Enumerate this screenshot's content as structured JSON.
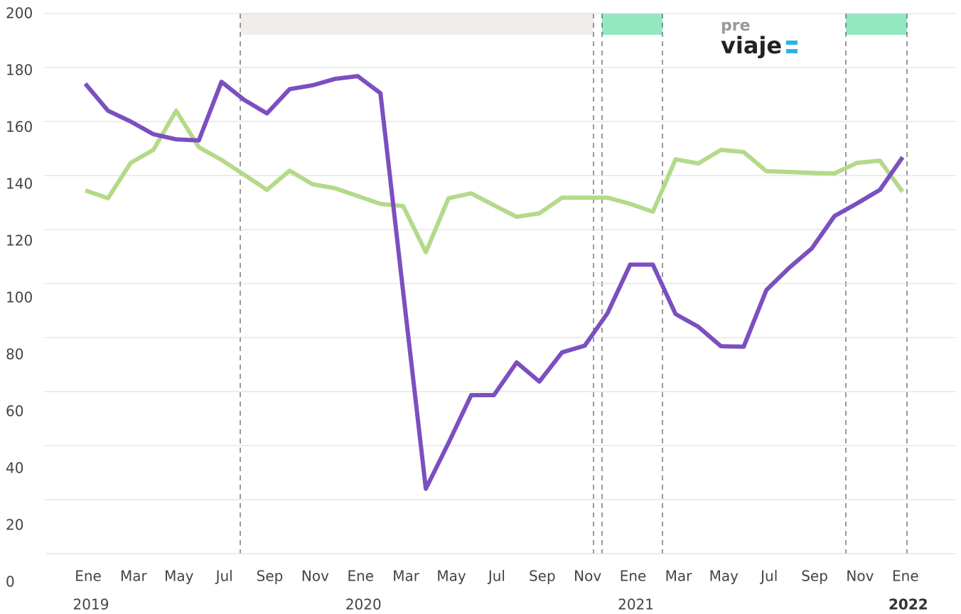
{
  "chart_data": {
    "type": "line",
    "logo": {
      "top": "pre",
      "bottom": "viaje"
    },
    "categories": [
      "Ene",
      null,
      "Mar",
      null,
      "May",
      null,
      "Jul",
      null,
      "Sep",
      null,
      "Nov",
      null,
      "Ene",
      null,
      "Mar",
      null,
      "May",
      null,
      "Jul",
      null,
      "Sep",
      null,
      "Nov",
      null,
      "Ene",
      null,
      "Mar",
      null,
      "May",
      null,
      "Jul",
      null,
      "Sep",
      null,
      "Nov",
      null,
      "Ene"
    ],
    "years": [
      "2019",
      null,
      null,
      null,
      null,
      null,
      null,
      null,
      null,
      null,
      null,
      null,
      "2020",
      null,
      null,
      null,
      null,
      null,
      null,
      null,
      null,
      null,
      null,
      null,
      "2021",
      null,
      null,
      null,
      null,
      null,
      null,
      null,
      null,
      null,
      null,
      null,
      "2022"
    ],
    "series": [
      {
        "color": "#7b4fc0",
        "values": [
          174,
          164,
          160,
          155.3,
          153.4,
          153,
          174.7,
          168,
          163,
          172,
          173.4,
          175.8,
          176.8,
          170.5,
          97,
          24,
          41,
          58.7,
          58.7,
          70.8,
          63.7,
          74.5,
          77,
          89,
          107,
          107,
          88.7,
          84,
          76.8,
          76.6,
          97.6,
          105.8,
          113,
          125,
          129.7,
          134.7,
          146.8
        ]
      },
      {
        "color": "#b5d98a",
        "values": [
          134.5,
          131.6,
          144.7,
          149.5,
          164,
          150.5,
          145.8,
          140.3,
          134.7,
          141.8,
          136.8,
          135.3,
          132.4,
          129.5,
          128.7,
          111.6,
          131.6,
          133.4,
          129,
          124.7,
          126,
          131.8,
          131.8,
          131.8,
          129.5,
          126.6,
          146,
          144.5,
          149.5,
          148.7,
          141.6,
          141.3,
          141,
          140.8,
          144.7,
          145.5,
          134
        ]
      }
    ],
    "ylim": [
      0,
      200
    ],
    "yticks": [
      0,
      20,
      40,
      60,
      80,
      100,
      120,
      140,
      160,
      180,
      200
    ],
    "grid": true
  }
}
